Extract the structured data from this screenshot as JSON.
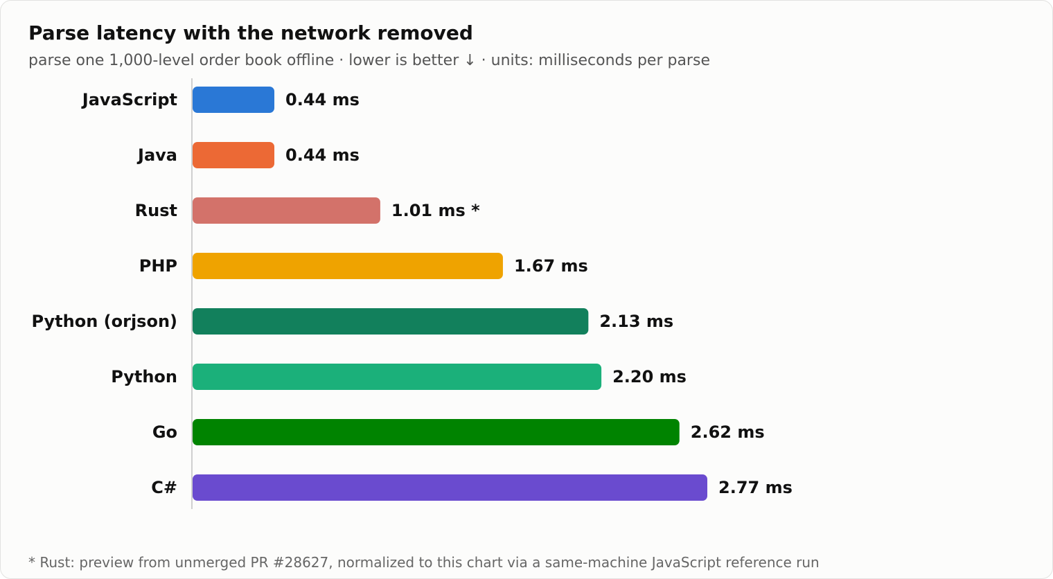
{
  "chart_data": {
    "type": "bar",
    "orientation": "horizontal",
    "title": "Parse latency with the network removed",
    "subtitle": "parse one 1,000-level order book offline · lower is better ↓ · units: milliseconds per parse",
    "unit": "ms",
    "categories": [
      "JavaScript",
      "Java",
      "Rust",
      "PHP",
      "Python (orjson)",
      "Python",
      "Go",
      "C#"
    ],
    "values": [
      0.44,
      0.44,
      1.01,
      1.67,
      2.13,
      2.2,
      2.62,
      2.77
    ],
    "value_labels": [
      "0.44 ms",
      "0.44 ms",
      "1.01 ms *",
      "1.67 ms",
      "2.13 ms",
      "2.20 ms",
      "2.62 ms",
      "2.77 ms"
    ],
    "colors": [
      "#2a78d6",
      "#ec6935",
      "#d3726a",
      "#efa300",
      "#12805c",
      "#1bb07a",
      "#008300",
      "#6a4bcf"
    ],
    "xlim": [
      0,
      2.77
    ],
    "grid": false,
    "footnote": "* Rust: preview from unmerged PR #28627, normalized to this chart via a same-machine JavaScript reference run"
  }
}
